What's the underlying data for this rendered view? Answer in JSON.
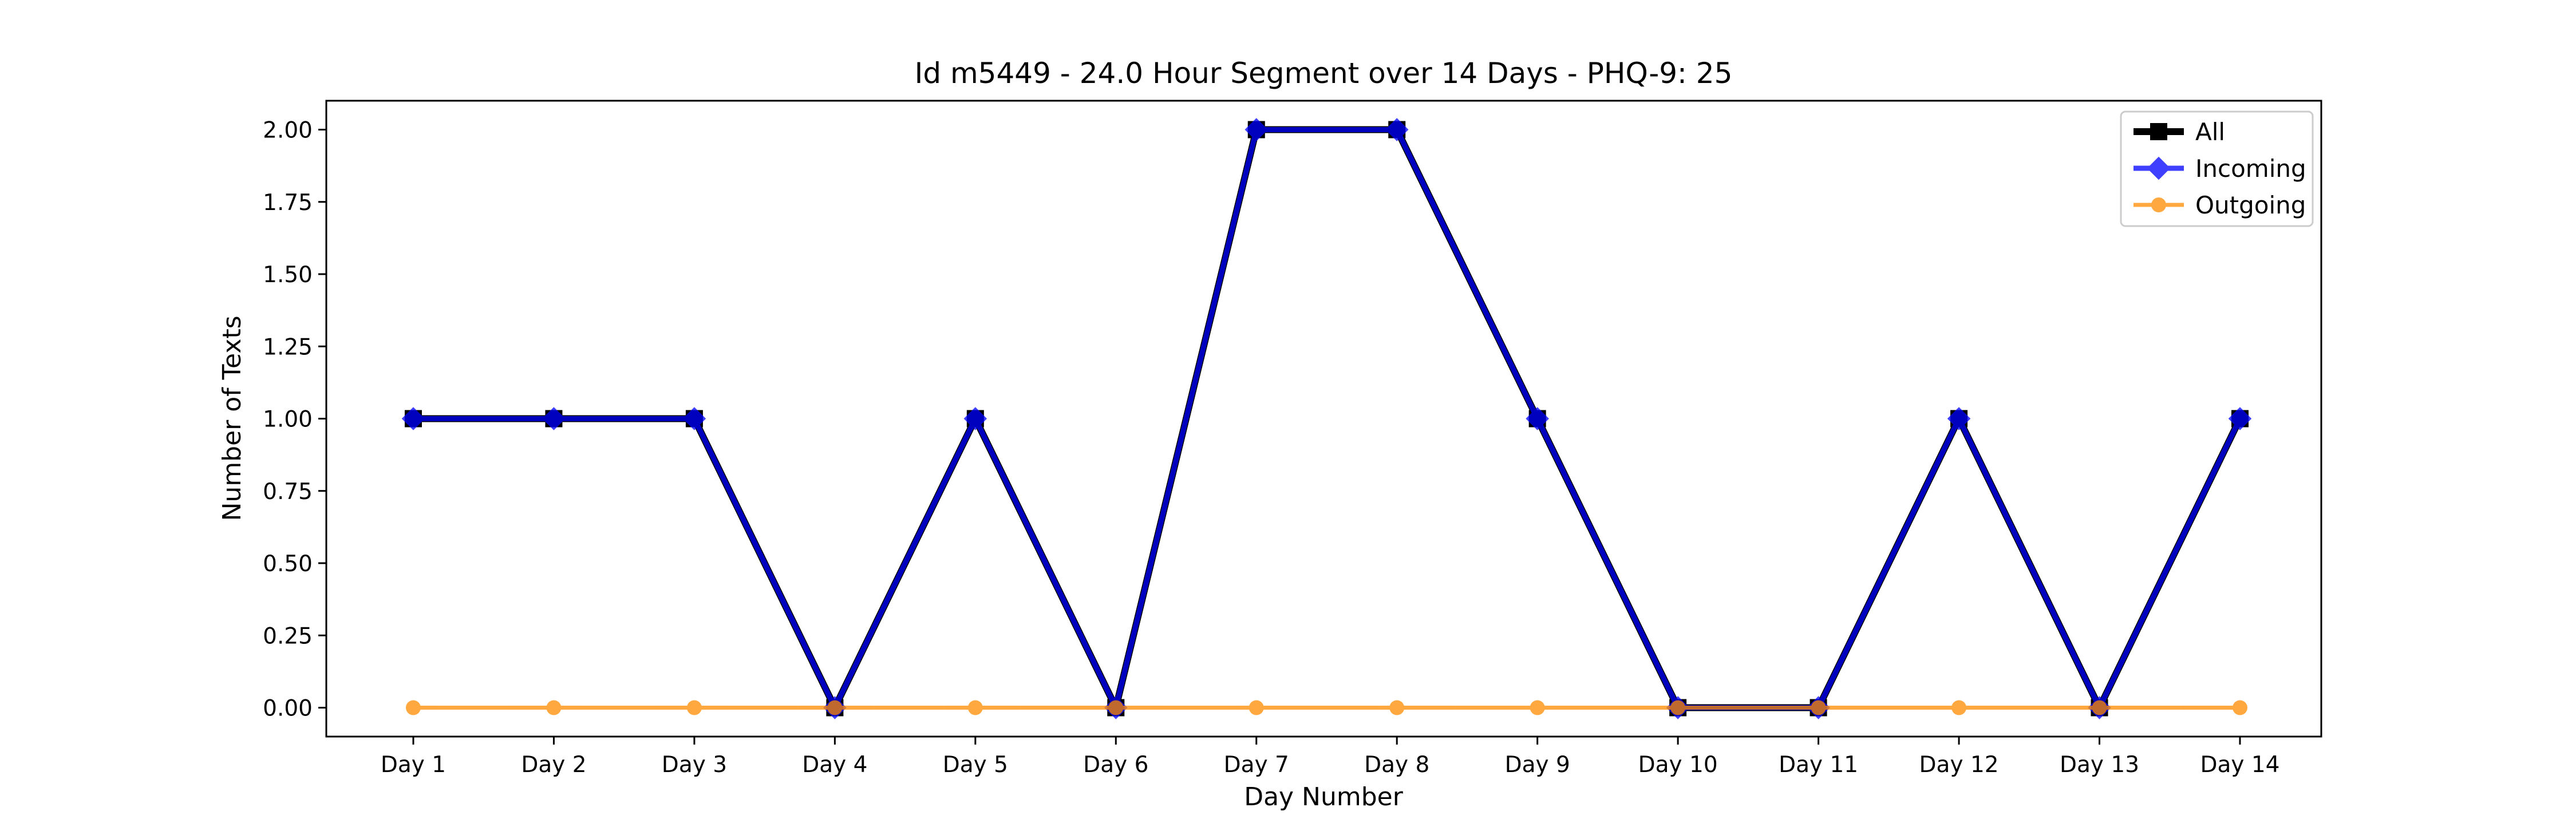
{
  "chart_data": {
    "type": "line",
    "title": "Id m5449 - 24.0 Hour Segment over 14 Days - PHQ-9: 25",
    "xlabel": "Day Number",
    "ylabel": "Number of Texts",
    "categories": [
      "Day 1",
      "Day 2",
      "Day 3",
      "Day 4",
      "Day 5",
      "Day 6",
      "Day 7",
      "Day 8",
      "Day 9",
      "Day 10",
      "Day 11",
      "Day 12",
      "Day 13",
      "Day 14"
    ],
    "ylim": [
      -0.1,
      2.1
    ],
    "yticks": [
      0.0,
      0.25,
      0.5,
      0.75,
      1.0,
      1.25,
      1.5,
      1.75,
      2.0
    ],
    "ytick_labels": [
      "0.00",
      "0.25",
      "0.50",
      "0.75",
      "1.00",
      "1.25",
      "1.50",
      "1.75",
      "2.00"
    ],
    "grid": false,
    "legend": "top-right",
    "series": [
      {
        "name": "All",
        "color": "#000000",
        "marker": "square",
        "values": [
          1,
          1,
          1,
          0,
          1,
          0,
          2,
          2,
          1,
          0,
          0,
          1,
          0,
          1
        ]
      },
      {
        "name": "Incoming",
        "color": "#0000ff",
        "marker": "diamond",
        "values": [
          1,
          1,
          1,
          0,
          1,
          0,
          2,
          2,
          1,
          0,
          0,
          1,
          0,
          1
        ]
      },
      {
        "name": "Outgoing",
        "color": "#ff8c00",
        "marker": "circle",
        "values": [
          0,
          0,
          0,
          0,
          0,
          0,
          0,
          0,
          0,
          0,
          0,
          0,
          0,
          0
        ]
      }
    ]
  }
}
